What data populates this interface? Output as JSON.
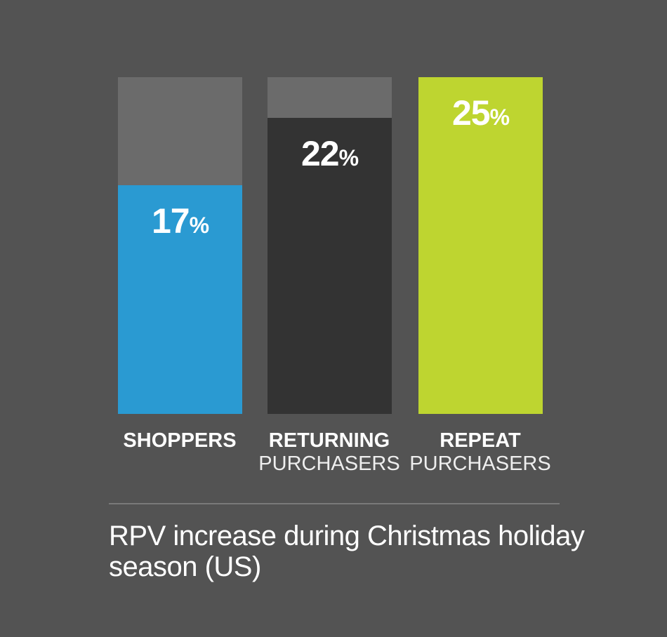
{
  "chart_data": {
    "type": "bar",
    "title": "RPV increase during Christmas holiday season (US)",
    "categories": [
      "SHOPPERS",
      "RETURNING PURCHASERS",
      "REPEAT PURCHASERS"
    ],
    "labels": [
      {
        "bold": "SHOPPERS",
        "light": ""
      },
      {
        "bold": "RETURNING",
        "light": "PURCHASERS"
      },
      {
        "bold": "REPEAT",
        "light": "PURCHASERS"
      }
    ],
    "values": [
      17,
      22,
      25
    ],
    "value_labels": [
      "17",
      "22",
      "25"
    ],
    "unit": "%",
    "ylim": [
      0,
      25
    ],
    "colors": [
      "#2a9ad2",
      "#333333",
      "#bed530"
    ],
    "track_color": "#6b6b6b",
    "xlabel": "",
    "ylabel": ""
  }
}
